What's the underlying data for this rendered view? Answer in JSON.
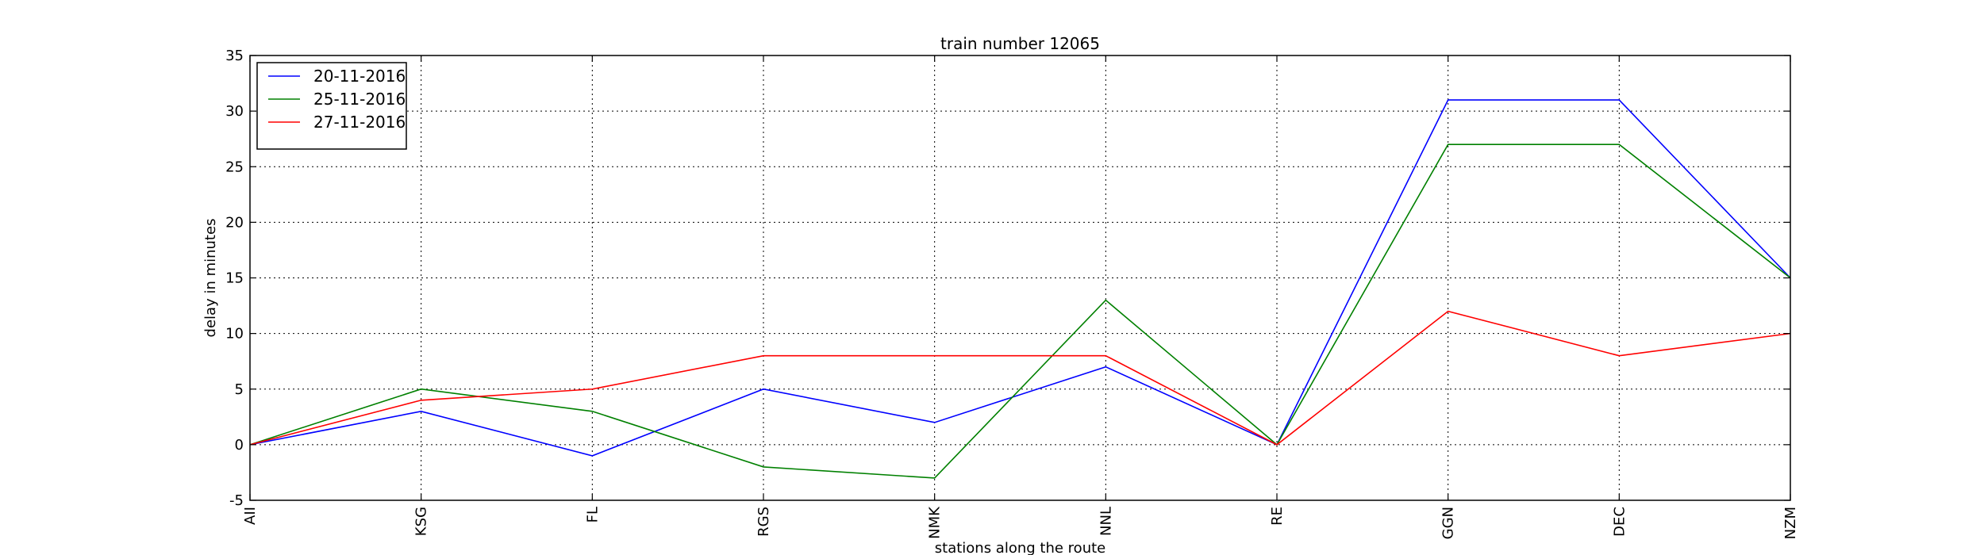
{
  "chart_data": {
    "type": "line",
    "title": "train number 12065",
    "xlabel": "stations along the route",
    "ylabel": "delay in minutes",
    "categories": [
      "AII",
      "KSG",
      "FL",
      "RGS",
      "NMK",
      "NNL",
      "RE",
      "GGN",
      "DEC",
      "NZM"
    ],
    "ylim": [
      -5,
      35
    ],
    "yticks": [
      -5,
      0,
      5,
      10,
      15,
      20,
      25,
      30,
      35
    ],
    "grid": true,
    "legend_position": "top-left",
    "series": [
      {
        "name": "20-11-2016",
        "color": "#0000ff",
        "values": [
          0,
          3,
          -1,
          5,
          2,
          7,
          0,
          31,
          31,
          15
        ]
      },
      {
        "name": "25-11-2016",
        "color": "#008000",
        "values": [
          0,
          5,
          3,
          -2,
          -3,
          13,
          0,
          27,
          27,
          15
        ]
      },
      {
        "name": "27-11-2016",
        "color": "#ff0000",
        "values": [
          0,
          4,
          5,
          8,
          8,
          8,
          0,
          12,
          8,
          10
        ]
      }
    ]
  }
}
